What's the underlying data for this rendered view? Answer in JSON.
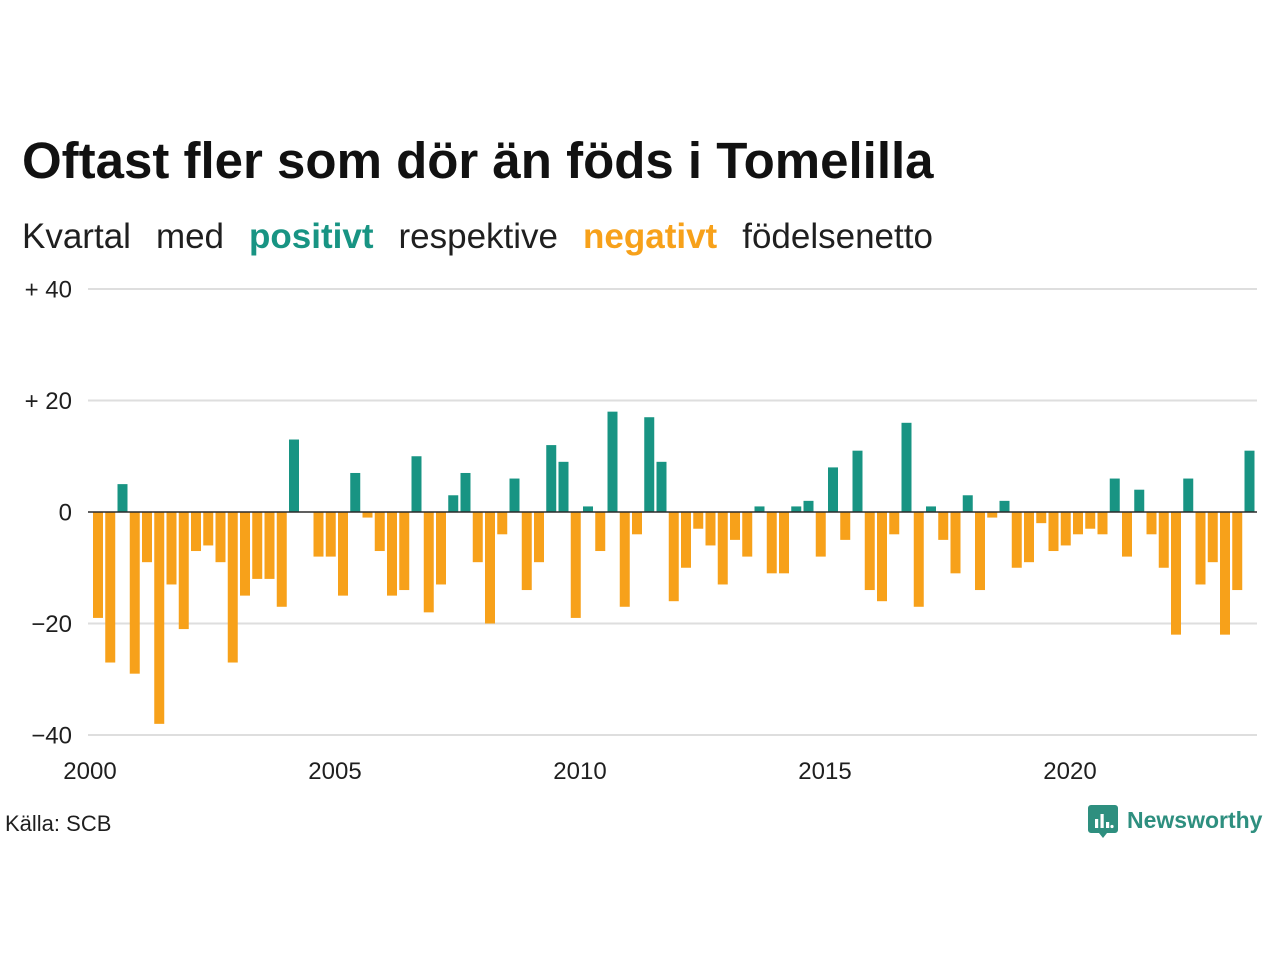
{
  "chart_data": {
    "type": "bar",
    "title": "Oftast fler som dör än föds i Tomelilla",
    "subtitle_parts": [
      "Kvartal",
      "med",
      "positivt",
      "respektive",
      "negativt",
      "födelsenetto"
    ],
    "ylim": [
      -40,
      40
    ],
    "xlim": [
      "2000-01-01",
      "2023-10-01"
    ],
    "grid": true,
    "colors": {
      "positive": "#189483",
      "negative": "#f7a11a"
    },
    "yticks": [
      {
        "value": 40,
        "label": "+ 40"
      },
      {
        "value": 20,
        "label": "+ 20"
      },
      {
        "value": 0,
        "label": "0"
      },
      {
        "value": -20,
        "label": "−20"
      },
      {
        "value": -40,
        "label": "−40"
      }
    ],
    "xticks": [
      {
        "value": "2000-01-01",
        "label": "2000"
      },
      {
        "value": "2005-01-01",
        "label": "2005"
      },
      {
        "value": "2010-01-01",
        "label": "2010"
      },
      {
        "value": "2015-01-01",
        "label": "2015"
      },
      {
        "value": "2020-01-01",
        "label": "2020"
      }
    ],
    "x": [
      "2000-01-01",
      "2000-04-01",
      "2000-07-01",
      "2000-10-01",
      "2001-01-01",
      "2001-04-01",
      "2001-07-01",
      "2001-10-01",
      "2002-01-01",
      "2002-04-01",
      "2002-07-01",
      "2002-10-01",
      "2003-01-01",
      "2003-04-01",
      "2003-07-01",
      "2003-10-01",
      "2004-01-01",
      "2004-04-01",
      "2004-07-01",
      "2004-10-01",
      "2005-01-01",
      "2005-04-01",
      "2005-07-01",
      "2005-10-01",
      "2006-01-01",
      "2006-04-01",
      "2006-07-01",
      "2006-10-01",
      "2007-01-01",
      "2007-04-01",
      "2007-07-01",
      "2007-10-01",
      "2008-01-01",
      "2008-04-01",
      "2008-07-01",
      "2008-10-01",
      "2009-01-01",
      "2009-04-01",
      "2009-07-01",
      "2009-10-01",
      "2010-01-01",
      "2010-04-01",
      "2010-07-01",
      "2010-10-01",
      "2011-01-01",
      "2011-04-01",
      "2011-07-01",
      "2011-10-01",
      "2012-01-01",
      "2012-04-01",
      "2012-07-01",
      "2012-10-01",
      "2013-01-01",
      "2013-04-01",
      "2013-07-01",
      "2013-10-01",
      "2014-01-01",
      "2014-04-01",
      "2014-07-01",
      "2014-10-01",
      "2015-01-01",
      "2015-04-01",
      "2015-07-01",
      "2015-10-01",
      "2016-01-01",
      "2016-04-01",
      "2016-07-01",
      "2016-10-01",
      "2017-01-01",
      "2017-04-01",
      "2017-07-01",
      "2017-10-01",
      "2018-01-01",
      "2018-04-01",
      "2018-07-01",
      "2018-10-01",
      "2019-01-01",
      "2019-04-01",
      "2019-07-01",
      "2019-10-01",
      "2020-01-01",
      "2020-04-01",
      "2020-07-01",
      "2020-10-01",
      "2021-01-01",
      "2021-04-01",
      "2021-07-01",
      "2021-10-01",
      "2022-01-01",
      "2022-04-01",
      "2022-07-01",
      "2022-10-01",
      "2023-01-01",
      "2023-04-01",
      "2023-07-01"
    ],
    "values": [
      -19,
      -27,
      5,
      -29,
      -9,
      -38,
      -13,
      -21,
      -7,
      -6,
      -9,
      -27,
      -15,
      -12,
      -12,
      -17,
      13,
      0,
      -8,
      -8,
      -15,
      7,
      -1,
      -7,
      -15,
      -14,
      10,
      -18,
      -13,
      3,
      7,
      -9,
      -20,
      -4,
      6,
      -14,
      -9,
      12,
      9,
      -19,
      1,
      -7,
      18,
      -17,
      -4,
      17,
      9,
      -16,
      -10,
      -3,
      -6,
      -13,
      -5,
      -8,
      1,
      -11,
      -11,
      1,
      2,
      -8,
      8,
      -5,
      11,
      -14,
      -16,
      -4,
      16,
      -17,
      1,
      -5,
      -11,
      3,
      -14,
      -1,
      2,
      -10,
      -9,
      -2,
      -7,
      -6,
      -4,
      -3,
      -4,
      6,
      -8,
      4,
      -4,
      -10,
      -22,
      6,
      -13,
      -9,
      -22,
      -14,
      11
    ]
  },
  "source": "Källa: SCB",
  "logo": {
    "text": "Newsworthy",
    "icon": "newsworthy-logo-icon"
  }
}
